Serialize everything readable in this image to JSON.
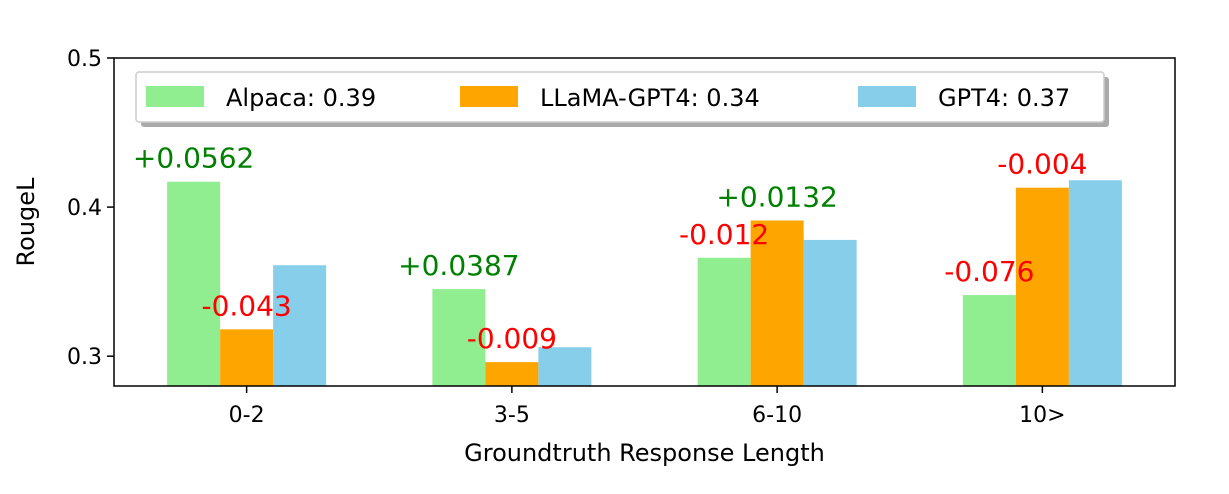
{
  "chart_data": {
    "type": "bar",
    "xlabel": "Groundtruth Response Length",
    "ylabel": "RougeL",
    "ylim": [
      0.28,
      0.5
    ],
    "yticks": [
      "0.3",
      "0.4",
      "0.5"
    ],
    "ytick_values": [
      0.3,
      0.4,
      0.5
    ],
    "categories": [
      "0-2",
      "3-5",
      "6-10",
      "10>"
    ],
    "series": [
      {
        "name": "Alpaca: 0.39",
        "color": "#90ee90",
        "values": [
          0.417,
          0.345,
          0.366,
          0.341
        ]
      },
      {
        "name": "LLaMA-GPT4: 0.34",
        "color": "#ffa500",
        "values": [
          0.318,
          0.296,
          0.391,
          0.413
        ]
      },
      {
        "name": "GPT4: 0.37",
        "color": "#87ceeb",
        "values": [
          0.361,
          0.306,
          0.378,
          0.418
        ]
      }
    ],
    "annotations": [
      {
        "text": "+0.0562",
        "color": "#008000",
        "x": 0,
        "series": 0
      },
      {
        "text": "-0.043",
        "color": "#ff0000",
        "x": 0,
        "series": 1
      },
      {
        "text": "+0.0387",
        "color": "#008000",
        "x": 1,
        "series": 0
      },
      {
        "text": "-0.009",
        "color": "#ff0000",
        "x": 1,
        "series": 1
      },
      {
        "text": "-0.012",
        "color": "#ff0000",
        "x": 2,
        "series": 0
      },
      {
        "text": "+0.0132",
        "color": "#008000",
        "x": 2,
        "series": 1
      },
      {
        "text": "-0.076",
        "color": "#ff0000",
        "x": 3,
        "series": 0
      },
      {
        "text": "-0.004",
        "color": "#ff0000",
        "x": 3,
        "series": 1
      }
    ],
    "legend_position": "top",
    "grid": false
  }
}
